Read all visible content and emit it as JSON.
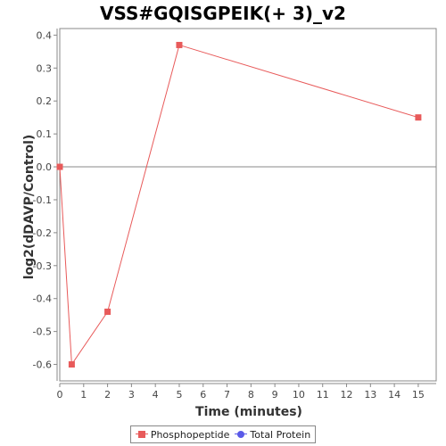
{
  "chart_data": {
    "type": "line",
    "title": "VSS#GQISGPEIK(+ 3)_v2",
    "xlabel": "Time (minutes)",
    "ylabel": "log2(dDAVP/Control)",
    "xlim": [
      0,
      15.75
    ],
    "ylim": [
      -0.65,
      0.42
    ],
    "x_ticks": [
      "0",
      "1",
      "2",
      "3",
      "4",
      "5",
      "6",
      "7",
      "8",
      "9",
      "10",
      "11",
      "12",
      "13",
      "14",
      "15"
    ],
    "y_ticks": [
      "0.4",
      "0.3",
      "0.2",
      "0.1",
      "0.0",
      "-0.1",
      "-0.2",
      "-0.3",
      "-0.4",
      "-0.5",
      "-0.6"
    ],
    "zero_line": true,
    "grid": false,
    "legend_position": "bottom",
    "series": [
      {
        "name": "Phosphopeptide",
        "color": "#e85a5a",
        "marker": "square",
        "points": [
          {
            "x": 0,
            "y": 0.0
          },
          {
            "x": 0.5,
            "y": -0.6
          },
          {
            "x": 2,
            "y": -0.44
          },
          {
            "x": 5,
            "y": 0.37
          },
          {
            "x": 15,
            "y": 0.15
          }
        ]
      },
      {
        "name": "Total Protein",
        "color": "#5a5ae8",
        "marker": "circle",
        "points": []
      }
    ]
  }
}
